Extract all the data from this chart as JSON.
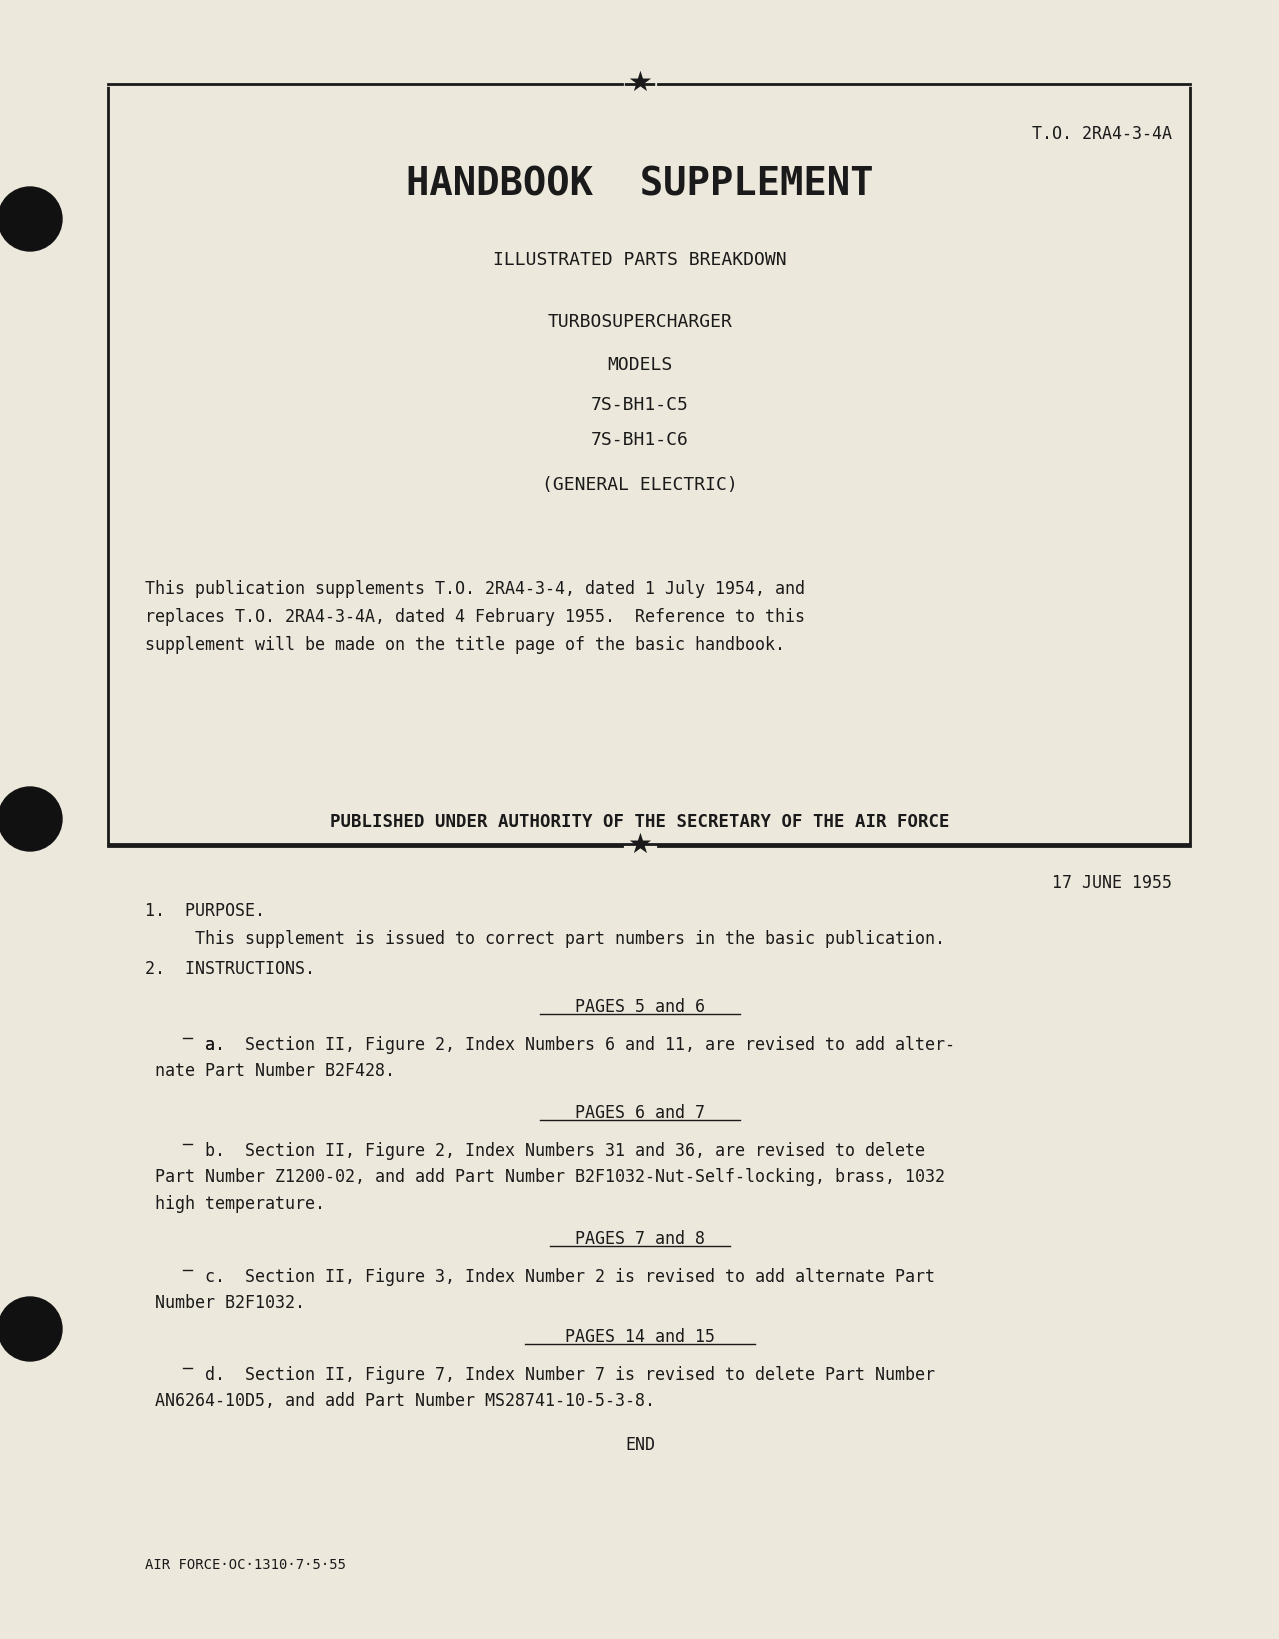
{
  "bg_color": "#ede8dc",
  "text_color": "#1a1a1a",
  "to_number": "T.O. 2RA4-3-4A",
  "title": "HANDBOOK  SUPPLEMENT",
  "subtitle1": "ILLUSTRATED PARTS BREAKDOWN",
  "subtitle2": "TURBOSUPERCHARGER",
  "subtitle3": "MODELS",
  "model1": "7S-BH1-C5",
  "model2": "7S-BH1-C6",
  "manufacturer": "(GENERAL ELECTRIC)",
  "publication_text": "This publication supplements T.O. 2RA4-3-4, dated 1 July 1954, and\nreplaces T.O. 2RA4-3-4A, dated 4 February 1955.  Reference to this\nsupplement will be made on the title page of the basic handbook.",
  "authority_text": "PUBLISHED UNDER AUTHORITY OF THE SECRETARY OF THE AIR FORCE",
  "date": "17 JUNE 1955",
  "section1_header": "1.  PURPOSE.",
  "section1_body": "     This supplement is issued to correct part numbers in the basic publication.",
  "section2_header": "2.  INSTRUCTIONS.",
  "pages_56": "PAGES 5 and 6",
  "para_a_label": "a.",
  "para_a": "  Section II, Figure 2, Index Numbers 6 and 11, are revised to add alter-\nnate Part Number B2F428.",
  "pages_67": "PAGES 6 and 7",
  "para_b_label": "b.",
  "para_b": "  Section II, Figure 2, Index Numbers 31 and 36, are revised to delete\nPart Number Z1200-02, and add Part Number B2F1032-Nut-Self-locking, brass, 1032\nhigh temperature.",
  "pages_78": "PAGES 7 and 8",
  "para_c_label": "c.",
  "para_c": "  Section II, Figure 3, Index Number 2 is revised to add alternate Part\nNumber B2F1032.",
  "pages_1415": "PAGES 14 and 15",
  "para_d_label": "d.",
  "para_d": "  Section II, Figure 7, Index Number 7 is revised to delete Part Number\nAN6264-10D5, and add Part Number MS28741-10-5-3-8.",
  "end_text": "END",
  "footer": "AIR FORCE·OC·1310·7·5·55"
}
